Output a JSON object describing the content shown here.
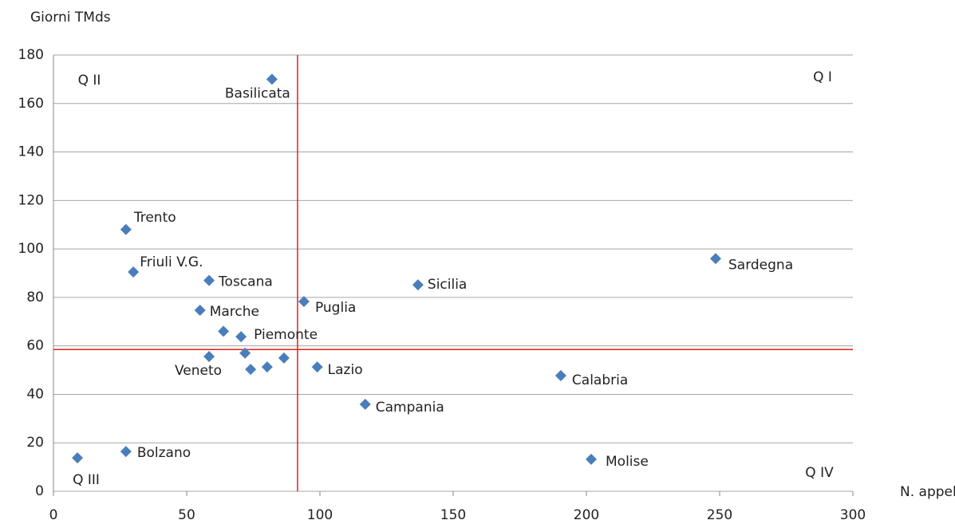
{
  "chart_data": {
    "type": "scatter",
    "x_label": "N. appelli",
    "y_label": "Giorni TMds",
    "annotations": [
      "Q I",
      "Q II",
      "Q III",
      "Q IV"
    ],
    "color": "#4a7ebb",
    "reference_color": "#e02020",
    "reference_lines": {
      "x": 91.6,
      "y": 58.5
    },
    "labels": [
      "Basilicata",
      "Trento",
      "Friuli V.G.",
      "Toscana",
      "Marche",
      null,
      "Piemonte",
      "Veneto",
      null,
      null,
      null,
      null,
      "Puglia",
      "Lazio",
      "Sicilia",
      "Campania",
      "Calabria",
      "Sardegna",
      "Molise",
      "Bolzano",
      null
    ],
    "x": [
      82,
      27.2,
      30,
      58.4,
      55,
      63.8,
      70.4,
      58.4,
      71.9,
      74,
      80.2,
      86.5,
      94,
      99,
      136.8,
      117,
      190.4,
      248.5,
      201.8,
      27.2,
      9
    ],
    "values": [
      170,
      108,
      90.5,
      87,
      74.7,
      66,
      63.8,
      55.6,
      57,
      50.3,
      51.3,
      55,
      78.3,
      51.3,
      85.2,
      35.9,
      47.7,
      96,
      13.2,
      16.4,
      13.8
    ],
    "xlim": [
      0,
      300
    ],
    "xticks": [
      0,
      50,
      100,
      150,
      200,
      250,
      300
    ],
    "ylim": [
      0,
      180
    ],
    "yticks": [
      0,
      20,
      40,
      60,
      80,
      100,
      120,
      140,
      160,
      180
    ],
    "grid": true
  }
}
